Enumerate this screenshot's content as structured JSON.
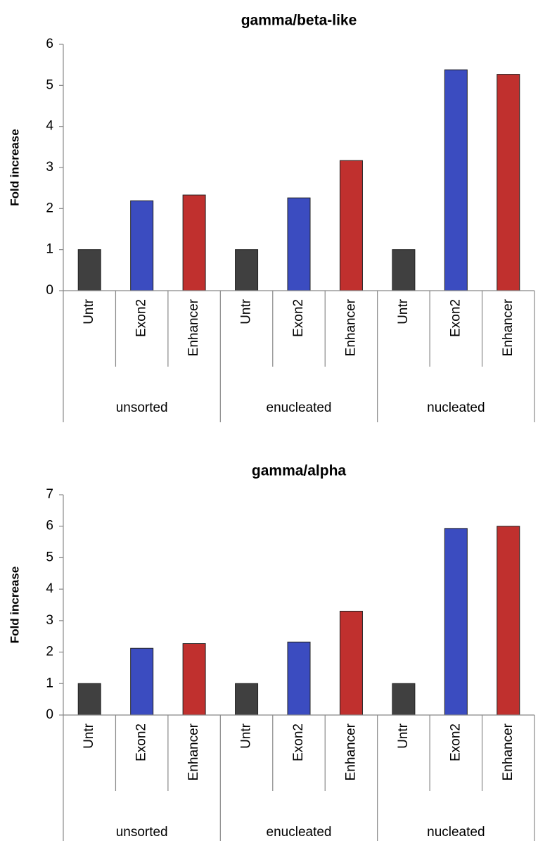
{
  "chart_data": [
    {
      "type": "bar",
      "title": "gamma/beta-like",
      "y_label": "Fold increase",
      "categories": [
        "Untr",
        "Exon2",
        "Enhancer",
        "Untr",
        "Exon2",
        "Enhancer",
        "Untr",
        "Exon2",
        "Enhancer"
      ],
      "groups": [
        "unsorted",
        "enucleated",
        "nucleated"
      ],
      "values": [
        1,
        2.19,
        2.33,
        1,
        2.26,
        3.17,
        1,
        5.38,
        5.27
      ],
      "colors": [
        "#404040",
        "#3b4cc0",
        "#c0302e",
        "#404040",
        "#3b4cc0",
        "#c0302e",
        "#404040",
        "#3b4cc0",
        "#c0302e"
      ],
      "ylim": [
        0,
        6
      ],
      "yticks": [
        0,
        1,
        2,
        3,
        4,
        5,
        6
      ]
    },
    {
      "type": "bar",
      "title": "gamma/alpha",
      "y_label": "Fold increase",
      "categories": [
        "Untr",
        "Exon2",
        "Enhancer",
        "Untr",
        "Exon2",
        "Enhancer",
        "Untr",
        "Exon2",
        "Enhancer"
      ],
      "groups": [
        "unsorted",
        "enucleated",
        "nucleated"
      ],
      "values": [
        1,
        2.12,
        2.27,
        1,
        2.32,
        3.3,
        1,
        5.93,
        6.0
      ],
      "colors": [
        "#404040",
        "#3b4cc0",
        "#c0302e",
        "#404040",
        "#3b4cc0",
        "#c0302e",
        "#404040",
        "#3b4cc0",
        "#c0302e"
      ],
      "ylim": [
        0,
        7
      ],
      "yticks": [
        0,
        1,
        2,
        3,
        4,
        5,
        6,
        7
      ]
    }
  ]
}
